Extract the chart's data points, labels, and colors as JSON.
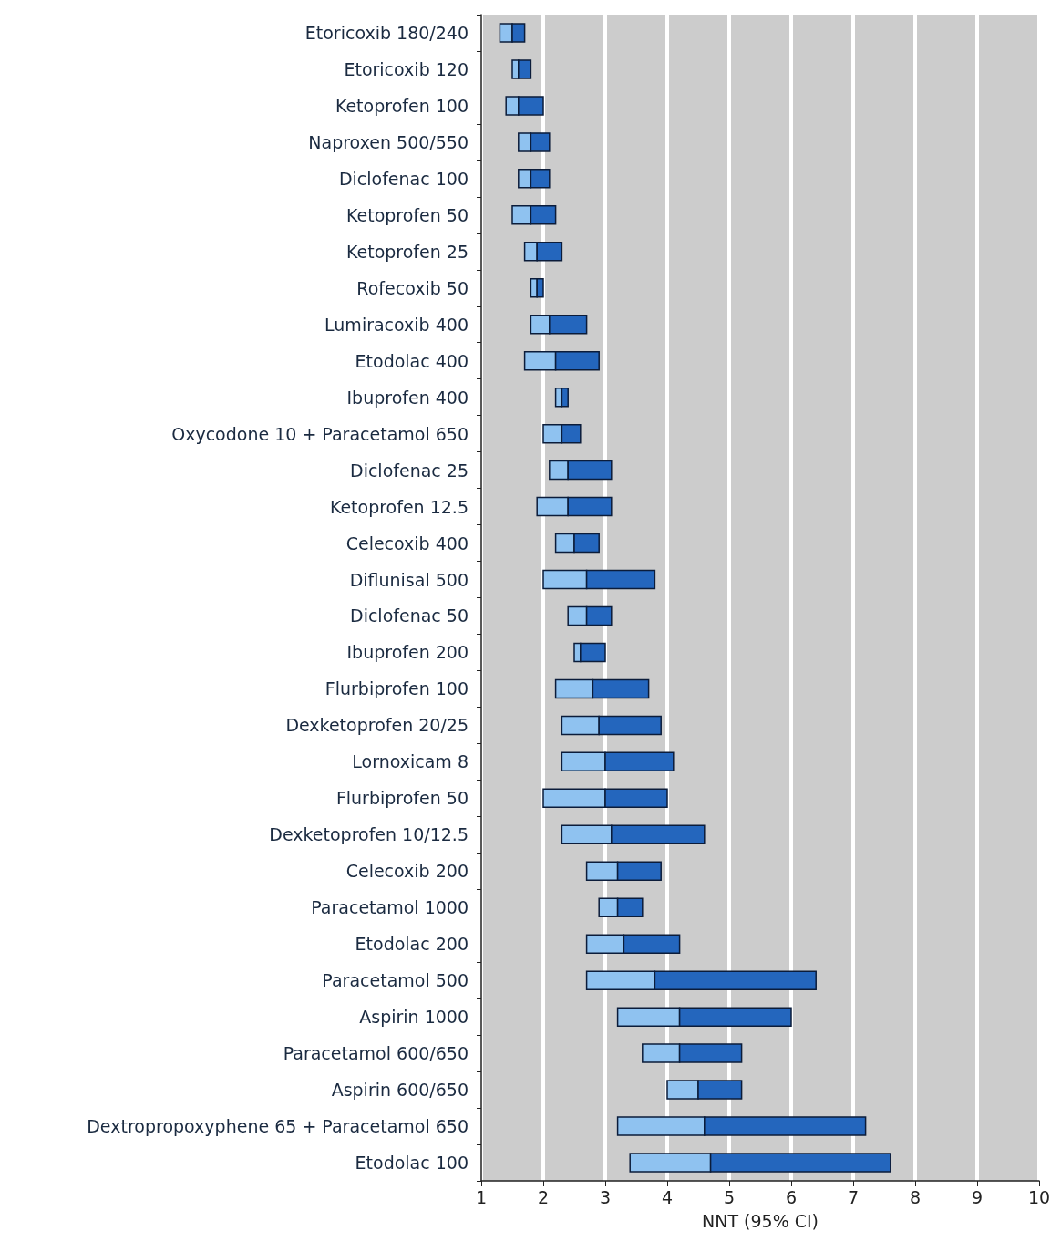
{
  "chart_data": {
    "type": "bar",
    "orientation": "horizontal",
    "xlabel": "NNT (95% CI)",
    "categories": [
      "Etoricoxib 180/240",
      "Etoricoxib 120",
      "Ketoprofen 100",
      "Naproxen 500/550",
      "Diclofenac 100",
      "Ketoprofen 50",
      "Ketoprofen 25",
      "Rofecoxib 50",
      "Lumiracoxib 400",
      "Etodolac 400",
      "Ibuprofen 400",
      "Oxycodone 10 + Paracetamol 650",
      "Diclofenac 25",
      "Ketoprofen 12.5",
      "Celecoxib 400",
      "Diflunisal 500",
      "Diclofenac 50",
      "Ibuprofen 200",
      "Flurbiprofen 100",
      "Dexketoprofen 20/25",
      "Lornoxicam 8",
      "Flurbiprofen 50",
      "Dexketoprofen 10/12.5",
      "Celecoxib 200",
      "Paracetamol 1000",
      "Etodolac 200",
      "Paracetamol 500",
      "Aspirin 1000",
      "Paracetamol 600/650",
      "Aspirin 600/650",
      "Dextropropoxyphene 65 + Paracetamol 650",
      "Etodolac 100"
    ],
    "series": [
      {
        "color": "#8fc2f0",
        "base": [
          1.3,
          1.5,
          1.4,
          1.6,
          1.6,
          1.5,
          1.7,
          1.8,
          1.8,
          1.7,
          2.2,
          2.0,
          2.1,
          1.9,
          2.2,
          2.0,
          2.4,
          2.5,
          2.2,
          2.3,
          2.3,
          2.0,
          2.3,
          2.7,
          2.9,
          2.7,
          2.7,
          3.2,
          3.6,
          4.0,
          3.2,
          3.4
        ],
        "values": [
          0.2,
          0.1,
          0.2,
          0.2,
          0.2,
          0.3,
          0.2,
          0.1,
          0.3,
          0.5,
          0.1,
          0.3,
          0.3,
          0.5,
          0.3,
          0.7,
          0.3,
          0.1,
          0.6,
          0.6,
          0.7,
          1.0,
          0.8,
          0.5,
          0.3,
          0.6,
          1.1,
          1.0,
          0.6,
          0.5,
          1.4,
          1.3
        ]
      },
      {
        "color": "#2466bd",
        "base": [
          1.5,
          1.6,
          1.6,
          1.8,
          1.8,
          1.8,
          1.9,
          1.9,
          2.1,
          2.2,
          2.3,
          2.3,
          2.4,
          2.4,
          2.5,
          2.7,
          2.7,
          2.6,
          2.8,
          2.9,
          3.0,
          3.0,
          3.1,
          3.2,
          3.2,
          3.3,
          3.8,
          4.2,
          4.2,
          4.5,
          4.6,
          4.7
        ],
        "values": [
          0.2,
          0.2,
          0.4,
          0.3,
          0.3,
          0.4,
          0.4,
          0.1,
          0.6,
          0.7,
          0.1,
          0.3,
          0.7,
          0.7,
          0.4,
          1.1,
          0.4,
          0.4,
          0.9,
          1.0,
          1.1,
          1.0,
          1.5,
          0.7,
          0.4,
          0.9,
          2.6,
          1.8,
          1.0,
          0.7,
          2.6,
          2.9
        ]
      }
    ],
    "xlim": [
      1,
      10
    ],
    "xticks": [
      1,
      2,
      3,
      4,
      5,
      6,
      7,
      8,
      9,
      10
    ],
    "grid": "x"
  }
}
